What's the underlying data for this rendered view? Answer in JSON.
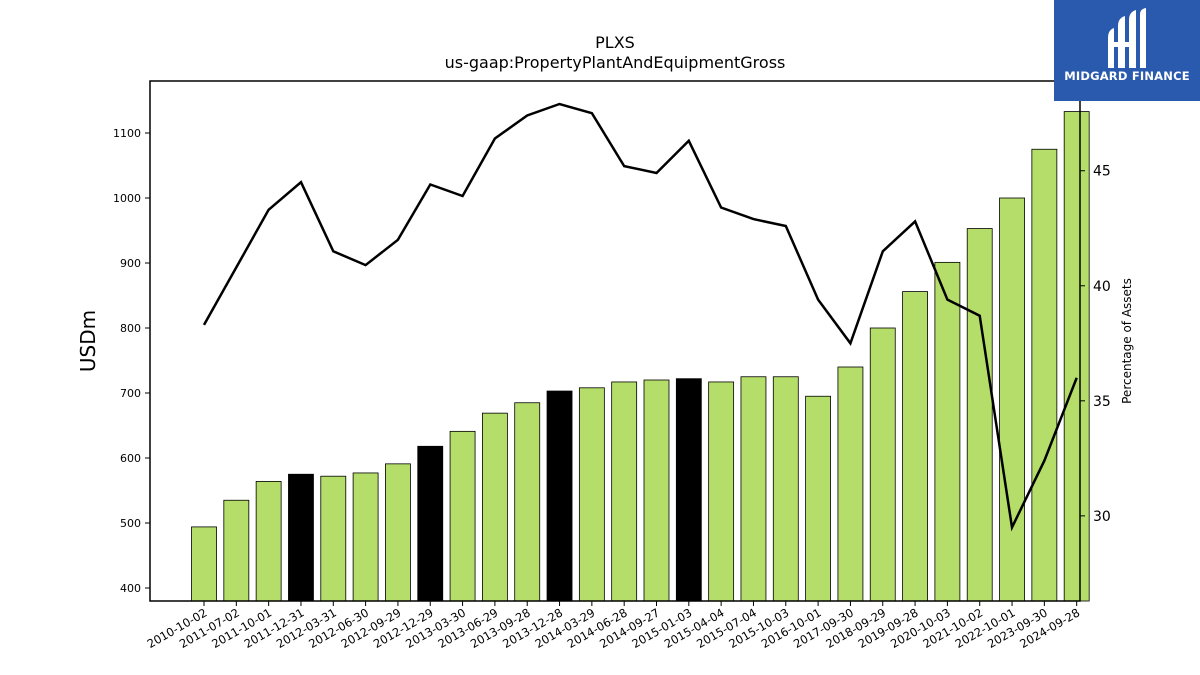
{
  "logo": {
    "text": "MIDGARD FINANCE",
    "icon": "midgard-logo-icon"
  },
  "colors": {
    "bar_default": "#b5dd6a",
    "bar_highlight": "#000000",
    "line": "#000000",
    "logo_bg": "#2a5aad"
  },
  "chart_data": {
    "type": "bar",
    "title": "PLXS",
    "subtitle": "us-gaap:PropertyPlantAndEquipmentGross",
    "ylabel": "USDm",
    "y2label": "Percentage of Assets",
    "ylim": [
      380,
      1180
    ],
    "y2lim": [
      26.3,
      48.9
    ],
    "yticks": [
      400,
      500,
      600,
      700,
      800,
      900,
      1000,
      1100
    ],
    "y2ticks": [
      30,
      35,
      40,
      45
    ],
    "categories": [
      "2010-10-02",
      "2011-07-02",
      "2011-10-01",
      "2011-12-31",
      "2012-03-31",
      "2012-06-30",
      "2012-09-29",
      "2012-12-29",
      "2013-03-30",
      "2013-06-29",
      "2013-09-28",
      "2013-12-28",
      "2014-03-29",
      "2014-06-28",
      "2014-09-27",
      "2015-01-03",
      "2015-04-04",
      "2015-07-04",
      "2015-10-03",
      "2016-10-01",
      "2017-09-30",
      "2018-09-29",
      "2019-09-28",
      "2020-10-03",
      "2021-10-02",
      "2022-10-01",
      "2023-09-30",
      "2024-09-28"
    ],
    "series": [
      {
        "type": "bar",
        "values": [
          494,
          535,
          564,
          575,
          572,
          577,
          591,
          618,
          641,
          669,
          685,
          703,
          708,
          717,
          720,
          722,
          717,
          725,
          725,
          695,
          740,
          800,
          856,
          901,
          953,
          1000,
          1075,
          1133
        ],
        "highlight": [
          false,
          false,
          false,
          true,
          false,
          false,
          false,
          true,
          false,
          false,
          false,
          true,
          false,
          false,
          false,
          true,
          false,
          false,
          false,
          false,
          false,
          false,
          false,
          false,
          false,
          false,
          false,
          false
        ]
      },
      {
        "type": "line",
        "axis": "right",
        "values": [
          38.3,
          40.8,
          43.3,
          44.5,
          41.5,
          40.9,
          42.0,
          44.4,
          43.9,
          46.4,
          47.4,
          47.9,
          47.5,
          45.2,
          44.9,
          46.3,
          43.4,
          42.9,
          42.6,
          39.4,
          37.5,
          41.5,
          42.8,
          39.4,
          38.7,
          29.5,
          32.4,
          36.0
        ]
      }
    ]
  }
}
